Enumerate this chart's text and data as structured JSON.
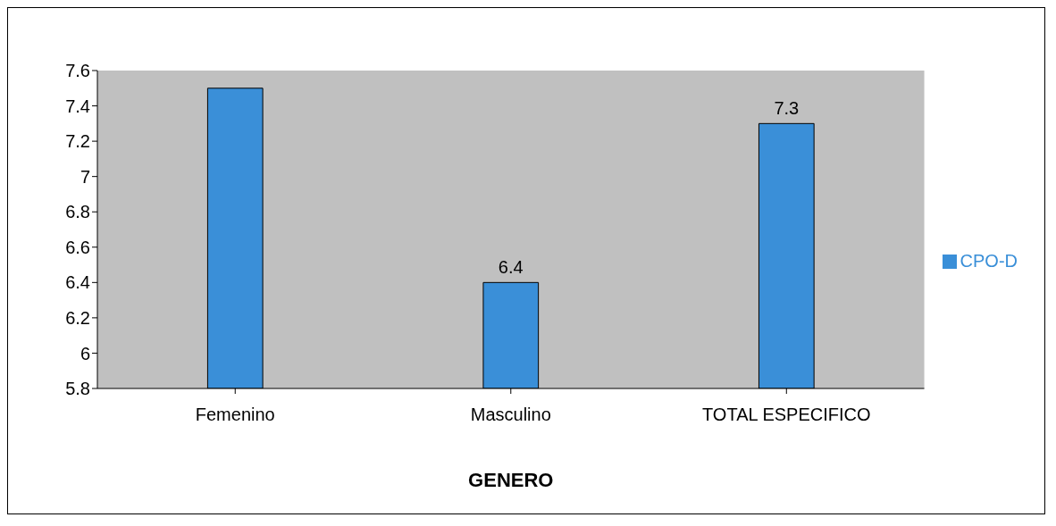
{
  "chart_data": {
    "type": "bar",
    "xlabel": "GENERO",
    "categories": [
      "Femenino",
      "Masculino",
      "TOTAL ESPECIFICO"
    ],
    "series": [
      {
        "name": "CPO-D",
        "color": "#3a8fd8",
        "values": [
          7.5,
          6.4,
          7.3
        ],
        "value_labels": [
          null,
          "6.4",
          "7.3"
        ]
      }
    ],
    "ylim": [
      5.8,
      7.6
    ],
    "yticks": [
      5.8,
      6,
      6.2,
      6.4,
      6.6,
      6.8,
      7,
      7.2,
      7.4,
      7.6
    ],
    "grid": false,
    "legend": "right"
  }
}
